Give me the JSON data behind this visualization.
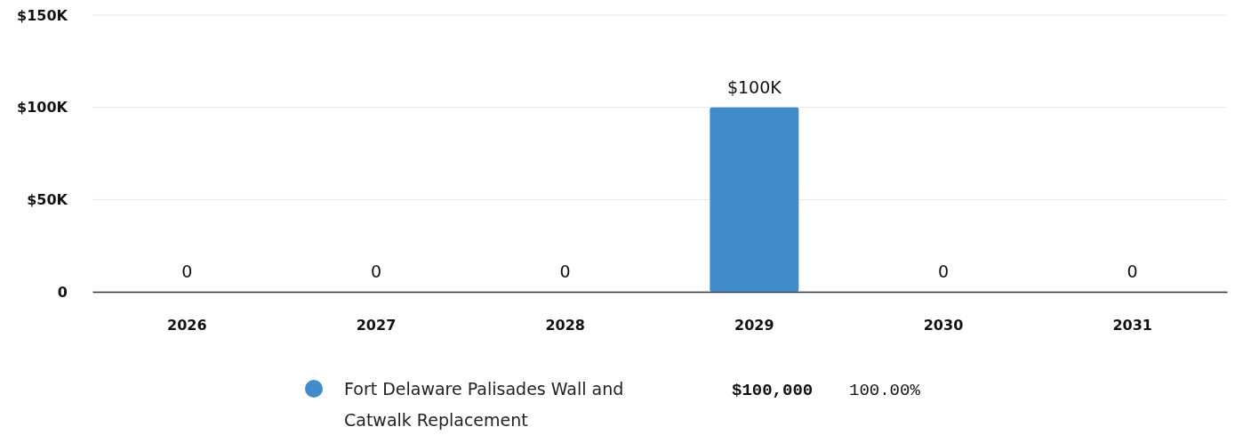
{
  "chart_data": {
    "type": "bar",
    "categories": [
      "2026",
      "2027",
      "2028",
      "2029",
      "2030",
      "2031"
    ],
    "series": [
      {
        "name": "Fort Delaware Palisades Wall and Catwalk Replacement",
        "color": "#428bca",
        "values": [
          0,
          0,
          0,
          100000,
          0,
          0
        ],
        "value_labels": [
          "0",
          "0",
          "0",
          "$100K",
          "0",
          "0"
        ]
      }
    ],
    "ylim": [
      0,
      150000
    ],
    "yticks": [
      {
        "value": 0,
        "label": "0"
      },
      {
        "value": 50000,
        "label": "$50K"
      },
      {
        "value": 100000,
        "label": "$100K"
      },
      {
        "value": 150000,
        "label": "$150K"
      }
    ],
    "grid": "y",
    "legend": "bottom",
    "annotations": [
      "$100,000",
      "100.00%"
    ]
  }
}
